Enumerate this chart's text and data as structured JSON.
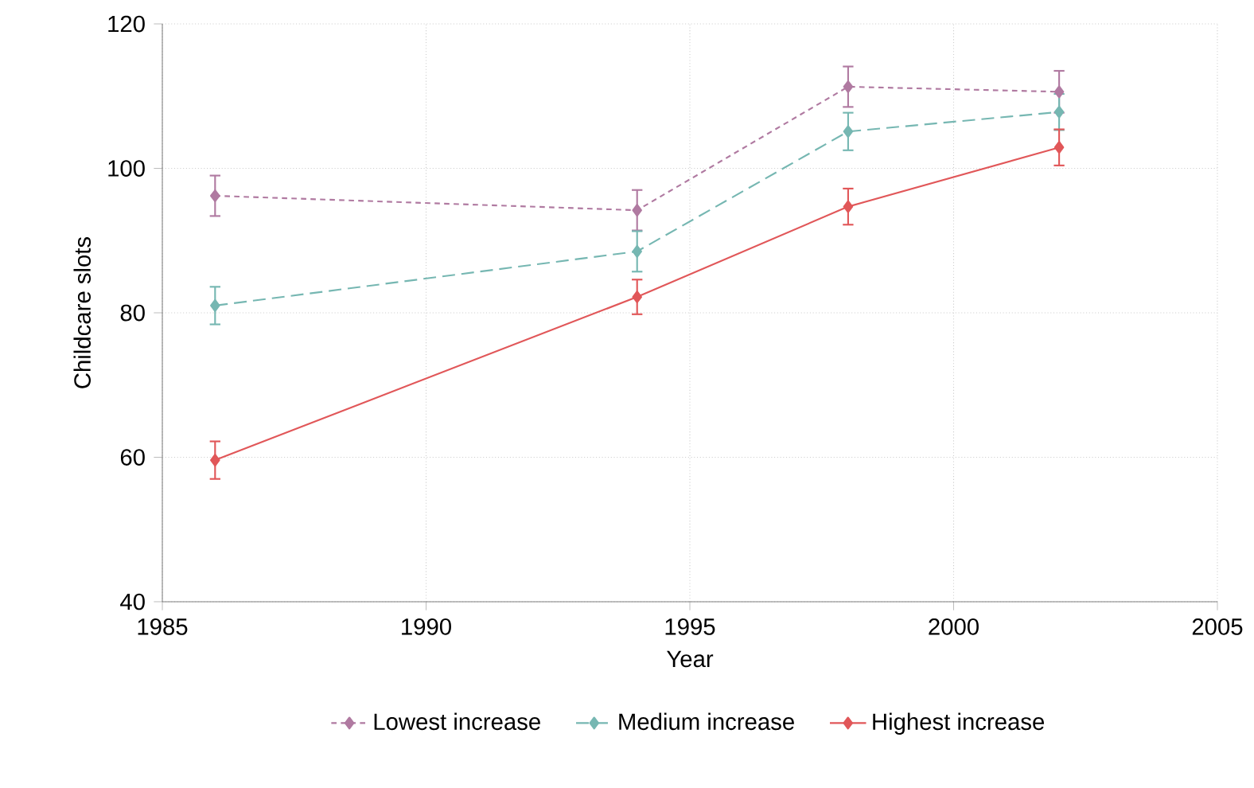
{
  "chart_data": {
    "type": "line",
    "xlabel": "Year",
    "ylabel": "Childcare slots",
    "x": [
      1986,
      1994,
      1998,
      2002
    ],
    "series": [
      {
        "name": "Lowest increase",
        "color": "#b07aa1",
        "line_style": "dotted",
        "values": [
          96.2,
          94.2,
          111.3,
          110.6
        ],
        "errors": [
          2.8,
          2.8,
          2.8,
          2.9
        ]
      },
      {
        "name": "Medium increase",
        "color": "#76b7b2",
        "line_style": "dashed",
        "values": [
          81.0,
          88.5,
          105.1,
          107.8
        ],
        "errors": [
          2.6,
          2.8,
          2.6,
          2.5
        ]
      },
      {
        "name": "Highest increase",
        "color": "#e15759",
        "line_style": "solid",
        "values": [
          59.6,
          82.2,
          94.7,
          102.9
        ],
        "errors": [
          2.6,
          2.4,
          2.5,
          2.5
        ]
      }
    ],
    "xlim": [
      1985,
      2005
    ],
    "xticks": [
      1985,
      1990,
      1995,
      2000,
      2005
    ],
    "ylim": [
      40,
      120
    ],
    "yticks": [
      40,
      60,
      80,
      100,
      120
    ],
    "grid": true,
    "legend": "bottom",
    "marker": "diamond"
  }
}
